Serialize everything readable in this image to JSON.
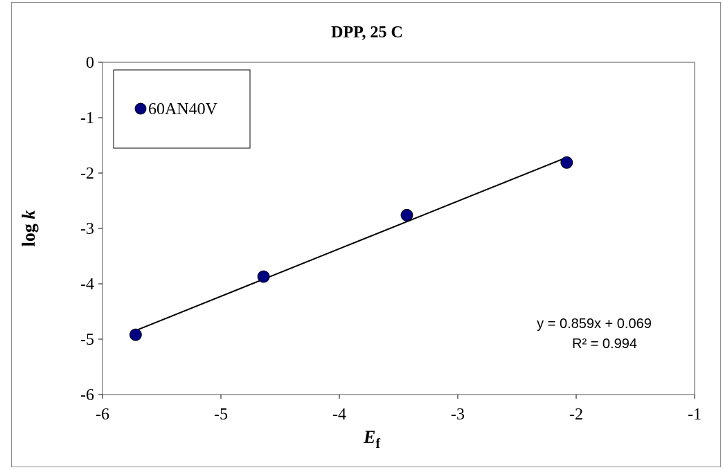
{
  "chart_data": {
    "type": "scatter",
    "title": "DPP, 25 C",
    "xlabel_main": "E",
    "xlabel_sub": "f",
    "ylabel_main": "log ",
    "ylabel_italic": "k",
    "xlim": [
      -6,
      -1
    ],
    "ylim": [
      -6,
      0
    ],
    "xticks": [
      -6,
      -5,
      -4,
      -3,
      -2,
      -1
    ],
    "yticks": [
      0,
      -1,
      -2,
      -3,
      -4,
      -5,
      -6
    ],
    "grid": false,
    "legend_position": "top-left",
    "series": [
      {
        "name": "60AN40V",
        "color": "#000080",
        "x": [
          -5.72,
          -4.64,
          -3.43,
          -2.08
        ],
        "y": [
          -4.92,
          -3.87,
          -2.76,
          -1.81
        ]
      }
    ],
    "trendline": {
      "slope": 0.859,
      "intercept": 0.069,
      "x_range": [
        -5.72,
        -2.08
      ],
      "equation": "y = 0.859x + 0.069",
      "r_squared": "R² = 0.994"
    }
  }
}
